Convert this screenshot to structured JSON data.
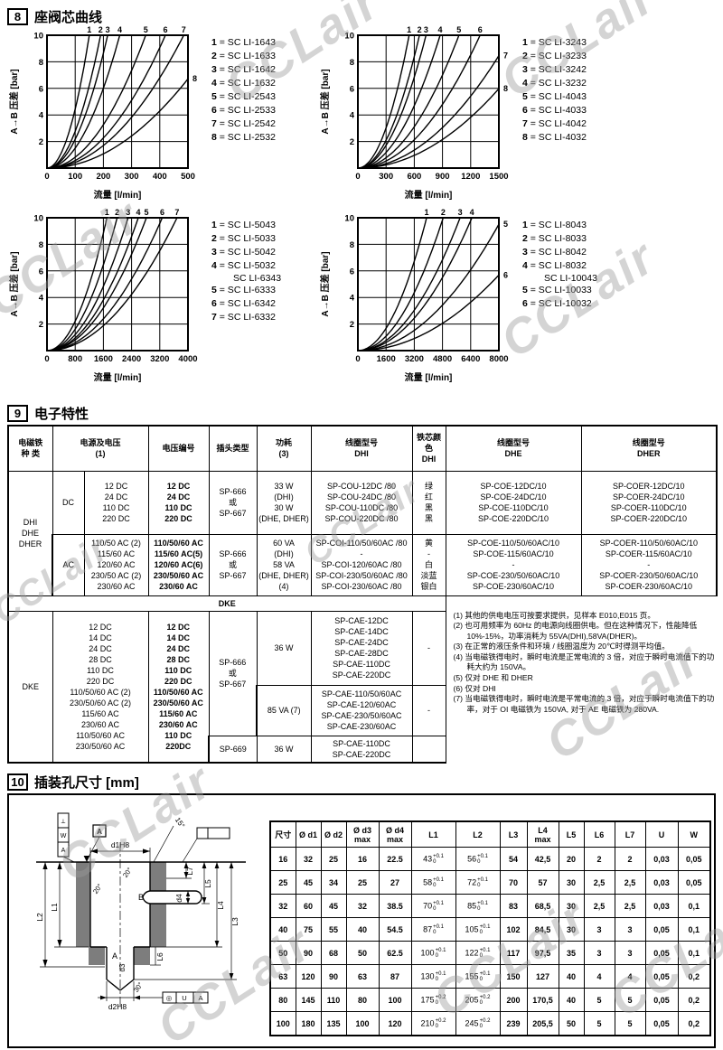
{
  "page": {
    "watermark": "CCLair",
    "sections": {
      "s8": {
        "num": "8",
        "title": "座阀芯曲线"
      },
      "s9": {
        "num": "9",
        "title": "电子特性"
      },
      "s10": {
        "num": "10",
        "title": "插装孔尺寸 [mm]"
      }
    }
  },
  "chart_data": [
    {
      "type": "line",
      "xlabel": "流量 [l/min]",
      "ylabel": "A→B 压差 [bar]",
      "xlim": [
        0,
        500
      ],
      "ylim": [
        0,
        10
      ],
      "xticks": [
        0,
        100,
        200,
        300,
        400,
        500
      ],
      "yticks": [
        0,
        2,
        4,
        6,
        8,
        10
      ],
      "grid": true,
      "legend_position": "right",
      "curves": [
        {
          "label": "1",
          "model": "SC LI-1643",
          "flow_at_10bar": 150
        },
        {
          "label": "2",
          "model": "SC LI-1633",
          "flow_at_10bar": 190
        },
        {
          "label": "3",
          "model": "SC LI-1642",
          "flow_at_10bar": 215
        },
        {
          "label": "4",
          "model": "SC LI-1632",
          "flow_at_10bar": 258
        },
        {
          "label": "5",
          "model": "SC LI-2543",
          "flow_at_10bar": 350
        },
        {
          "label": "6",
          "model": "SC LI-2533",
          "flow_at_10bar": 420
        },
        {
          "label": "7",
          "model": "SC LI-2542",
          "flow_at_10bar": 485
        },
        {
          "label": "8",
          "model": "SC LI-2532",
          "flow_at_10bar": 610
        }
      ]
    },
    {
      "type": "line",
      "xlabel": "流量 [l/min]",
      "ylabel": "A→B 压差 [bar]",
      "xlim": [
        0,
        1500
      ],
      "ylim": [
        0,
        10
      ],
      "xticks": [
        0,
        300,
        600,
        900,
        1200,
        1500
      ],
      "yticks": [
        0,
        2,
        4,
        6,
        8,
        10
      ],
      "grid": true,
      "legend_position": "right",
      "curves": [
        {
          "label": "1",
          "model": "SC LI-3243",
          "flow_at_10bar": 545
        },
        {
          "label": "2",
          "model": "SC LI-3233",
          "flow_at_10bar": 655
        },
        {
          "label": "3",
          "model": "SC LI-3242",
          "flow_at_10bar": 725
        },
        {
          "label": "4",
          "model": "SC LI-3232",
          "flow_at_10bar": 875
        },
        {
          "label": "5",
          "model": "SC LI-4043",
          "flow_at_10bar": 1075
        },
        {
          "label": "6",
          "model": "SC LI-4033",
          "flow_at_10bar": 1300
        },
        {
          "label": "7",
          "model": "SC LI-4042",
          "flow_at_10bar": 1630
        },
        {
          "label": "8",
          "model": "SC LI-4032",
          "flow_at_10bar": 1940
        }
      ]
    },
    {
      "type": "line",
      "xlabel": "流量 [l/min]",
      "ylabel": "A→B 压差 [bar]",
      "xlim": [
        0,
        4000
      ],
      "ylim": [
        0,
        10
      ],
      "xticks": [
        0,
        800,
        1600,
        2400,
        3200,
        4000
      ],
      "yticks": [
        0,
        2,
        4,
        6,
        8,
        10
      ],
      "grid": true,
      "legend_position": "right",
      "curves": [
        {
          "label": "1",
          "model": "SC LI-5043",
          "flow_at_10bar": 1700
        },
        {
          "label": "2",
          "model": "SC LI-5033",
          "flow_at_10bar": 1990
        },
        {
          "label": "3",
          "model": "SC LI-5042",
          "flow_at_10bar": 2300
        },
        {
          "label": "4",
          "model": "SC LI-5032\nSC LI-6343",
          "flow_at_10bar": 2590
        },
        {
          "label": "5",
          "model": "SC LI-6333",
          "flow_at_10bar": 2820
        },
        {
          "label": "6",
          "model": "SC LI-6342",
          "flow_at_10bar": 3270
        },
        {
          "label": "7",
          "model": "SC LI-6332",
          "flow_at_10bar": 3690
        }
      ]
    },
    {
      "type": "line",
      "xlabel": "流量 [l/min]",
      "ylabel": "A→B 压差 [bar]",
      "xlim": [
        0,
        8000
      ],
      "ylim": [
        0,
        10
      ],
      "xticks": [
        0,
        1600,
        3200,
        4800,
        6400,
        8000
      ],
      "yticks": [
        0,
        2,
        4,
        6,
        8,
        10
      ],
      "grid": true,
      "legend_position": "right",
      "curves": [
        {
          "label": "1",
          "model": "SC LI-8043",
          "flow_at_10bar": 3900
        },
        {
          "label": "2",
          "model": "SC LI-8033",
          "flow_at_10bar": 4840
        },
        {
          "label": "3",
          "model": "SC LI-8042",
          "flow_at_10bar": 5800
        },
        {
          "label": "4",
          "model": "SC LI-8032\nSC LI-10043",
          "flow_at_10bar": 6470
        },
        {
          "label": "5",
          "model": "SC LI-10033",
          "flow_at_10bar": 8200
        },
        {
          "label": "6",
          "model": "SC LI-10032",
          "flow_at_10bar": 10600
        }
      ]
    }
  ],
  "solenoid_table": {
    "headers": {
      "type": "电磁铁\n种 类",
      "supply": "电源及电压\n(1)",
      "code": "电压编号",
      "plug": "插头类型",
      "power": "功耗\n(3)",
      "coil_dhi": "线圈型号\nDHI",
      "core_color": "铁芯颜色\nDHI",
      "coil_dhe": "线圈型号\nDHE",
      "coil_dher": "线圈型号\nDHER"
    },
    "group1": {
      "type_label": "DHI\nDHE\nDHER",
      "rows": [
        {
          "current": "DC",
          "supply": "12 DC\n24 DC\n110 DC\n220 DC",
          "code": "12 DC\n24 DC\n110 DC\n220 DC",
          "plug": "SP-666\n或\nSP-667",
          "power": "33 W\n(DHI)\n30 W\n(DHE, DHER)",
          "coil_dhi": "SP-COU-12DC /80\nSP-COU-24DC /80\nSP-COU-110DC /80\nSP-COU-220DC /80",
          "core_color": "绿\n红\n黑\n黑",
          "coil_dhe": "SP-COE-12DC/10\nSP-COE-24DC/10\nSP-COE-110DC/10\nSP-COE-220DC/10",
          "coil_dher": "SP-COER-12DC/10\nSP-COER-24DC/10\nSP-COER-110DC/10\nSP-COER-220DC/10"
        },
        {
          "current": "AC",
          "supply": "110/50 AC (2)\n115/60 AC\n120/60 AC\n230/50 AC (2)\n230/60 AC",
          "code": "110/50/60 AC\n115/60 AC(5)\n120/60 AC(6)\n230/50/60 AC\n230/60 AC",
          "plug": "SP-666\n或\nSP-667",
          "power": "60 VA\n(DHI)\n58 VA\n(DHE, DHER)\n(4)",
          "coil_dhi": "SP-COI-110/50/60AC /80\n-\nSP-COI-120/60AC /80\nSP-COI-230/50/60AC /80\nSP-COI-230/60AC /80",
          "core_color": "黄\n-\n白\n淡蓝\n银白",
          "coil_dhe": "SP-COE-110/50/60AC/10\nSP-COE-115/60AC/10\n-\nSP-COE-230/50/60AC/10\nSP-COE-230/60AC/10",
          "coil_dher": "SP-COER-110/50/60AC/10\nSP-COER-115/60AC/10\n-\nSP-COER-230/50/60AC/10\nSP-COER-230/60AC/10"
        }
      ]
    },
    "band_label": "DKE",
    "group2": {
      "type_label": "DKE",
      "supply": "12 DC\n14 DC\n24 DC\n28 DC\n110 DC\n220 DC\n110/50/60 AC (2)\n230/50/60 AC (2)\n115/60 AC\n230/60 AC\n110/50/60 AC\n230/50/60 AC",
      "code": "12 DC\n14 DC\n24 DC\n28 DC\n110 DC\n220 DC\n110/50/60 AC\n230/50/60 AC\n115/60 AC\n230/60 AC\n110 DC\n220DC",
      "plug_a": "SP-666\n或\nSP-667",
      "plug_b": "SP-669",
      "sub_rows": [
        {
          "power": "36 W",
          "coil": "SP-CAE-12DC\nSP-CAE-14DC\nSP-CAE-24DC\nSP-CAE-28DC\nSP-CAE-110DC\nSP-CAE-220DC",
          "core_color": "-"
        },
        {
          "power": "85 VA (7)",
          "coil": "SP-CAE-110/50/60AC\nSP-CAE-120/60AC\nSP-CAE-230/50/60AC\nSP-CAE-230/60AC",
          "core_color": "-"
        },
        {
          "power": "36 W",
          "coil": "SP-CAE-110DC\nSP-CAE-220DC",
          "core_color": ""
        }
      ]
    },
    "notes": [
      "(1) 其他的供电电压可按要求提供，见样本 E010,E015 页。",
      "(2) 也可用频率为 60Hz 的电源向线圈供电。但在这种情况下，性能降低 10%-15%，功率消耗为 55VA(DHI),58VA(DHER)。",
      "(3) 在正常的液压条件和环境 / 线圈温度为 20℃时得测平均值。",
      "(4) 当电磁铁得电时，瞬时电流是正常电流的 3 倍，对应于瞬时电流值下的功耗大约为 150VA。",
      "(5) 仅对 DHE 和 DHER",
      "(6) 仅对 DHI",
      "(7) 当电磁铁得电时，瞬时电流是平常电流的 3 倍，对应于瞬时电流值下的功率，对于 OI 电磁铁为 150VA, 对于 AE 电磁铁为 280VA."
    ]
  },
  "cavity": {
    "headers": [
      "尺寸",
      "Ø d1",
      "Ø d2",
      "Ø d3\nmax",
      "Ø d4\nmax",
      "L1",
      "L2",
      "L3",
      "L4\nmax",
      "L5",
      "L6",
      "L7",
      "U",
      "W"
    ],
    "rows": [
      [
        "16",
        "32",
        "25",
        "16",
        "22.5",
        "43|+0.1|0",
        "56|+0.1|0",
        "54",
        "42,5",
        "20",
        "2",
        "2",
        "0,03",
        "0,05"
      ],
      [
        "25",
        "45",
        "34",
        "25",
        "27",
        "58|+0.1|0",
        "72|+0.1|0",
        "70",
        "57",
        "30",
        "2,5",
        "2,5",
        "0,03",
        "0,05"
      ],
      [
        "32",
        "60",
        "45",
        "32",
        "38.5",
        "70|+0.1|0",
        "85|+0.1|0",
        "83",
        "68,5",
        "30",
        "2,5",
        "2,5",
        "0,03",
        "0,1"
      ],
      [
        "40",
        "75",
        "55",
        "40",
        "54.5",
        "87|+0.1|0",
        "105|+0.1|0",
        "102",
        "84,5",
        "30",
        "3",
        "3",
        "0,05",
        "0,1"
      ],
      [
        "50",
        "90",
        "68",
        "50",
        "62.5",
        "100|+0.1|0",
        "122|+0.1|0",
        "117",
        "97,5",
        "35",
        "3",
        "3",
        "0,05",
        "0,1"
      ],
      [
        "63",
        "120",
        "90",
        "63",
        "87",
        "130|+0.1|0",
        "155|+0.1|0",
        "150",
        "127",
        "40",
        "4",
        "4",
        "0,05",
        "0,2"
      ],
      [
        "80",
        "145",
        "110",
        "80",
        "100",
        "175|+0.2|0",
        "205|+0.2|0",
        "200",
        "170,5",
        "40",
        "5",
        "5",
        "0,05",
        "0,2"
      ],
      [
        "100",
        "180",
        "135",
        "100",
        "120",
        "210|+0.2|0",
        "245|+0.2|0",
        "239",
        "205,5",
        "50",
        "5",
        "5",
        "0,05",
        "0,2"
      ]
    ]
  },
  "drawing": {
    "datum_a": "A",
    "dim_d1": "d1H8",
    "dim_d2": "d2H8",
    "dim_d3": "d3",
    "dim_d4": "d4",
    "port_a": "A",
    "port_b": "B",
    "l1": "L1",
    "l2": "L2",
    "l3": "L3",
    "l4": "L4",
    "l5": "L5",
    "l6": "L6",
    "l7": "L7",
    "angle_15": "15°",
    "angle_20a": "20°",
    "angle_20b": "20°",
    "angle_30": "30°",
    "tol_bottom_sym": "◎",
    "tol_bottom_val": "U",
    "tol_bottom_ref": "A",
    "tol_left_sym": "⟂",
    "tol_left_val": "W",
    "tol_left_ref": "A"
  }
}
